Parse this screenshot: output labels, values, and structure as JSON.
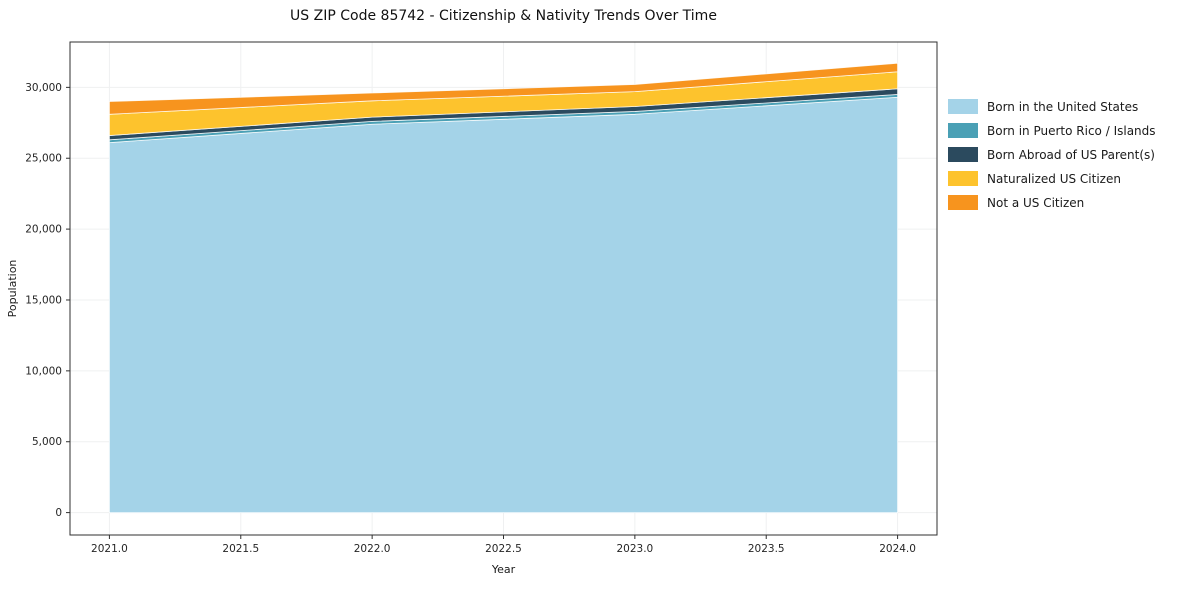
{
  "title": "US ZIP Code 85742 - Citizenship & Nativity Trends Over Time",
  "chart_data": {
    "type": "area",
    "stacked": true,
    "title": "US ZIP Code 85742 - Citizenship & Nativity Trends Over Time",
    "xlabel": "Year",
    "ylabel": "Population",
    "x": [
      2021,
      2022,
      2023,
      2024
    ],
    "series": [
      {
        "name": "Born in the United States",
        "color": "#a4d3e8",
        "values": [
          26100,
          27400,
          28100,
          29300
        ]
      },
      {
        "name": "Born in Puerto Rico / Islands",
        "color": "#4aa0b5",
        "values": [
          200,
          200,
          200,
          200
        ]
      },
      {
        "name": "Born Abroad of US Parent(s)",
        "color": "#2b4a5e",
        "values": [
          300,
          300,
          350,
          400
        ]
      },
      {
        "name": "Naturalized US Citizen",
        "color": "#fdc32d",
        "values": [
          1500,
          1150,
          1050,
          1200
        ]
      },
      {
        "name": "Not a US Citizen",
        "color": "#f7941e",
        "values": [
          900,
          550,
          500,
          600
        ]
      }
    ],
    "totals": [
      29000,
      29600,
      30200,
      31700
    ],
    "xticks": [
      "2021.0",
      "2021.5",
      "2022.0",
      "2022.5",
      "2023.0",
      "2023.5",
      "2024.0"
    ],
    "yticks": [
      "0",
      "5,000",
      "10,000",
      "15,000",
      "20,000",
      "25,000",
      "30,000"
    ],
    "xlim": [
      2020.85,
      2024.15
    ],
    "ylim": [
      -1580,
      33200
    ],
    "grid": true,
    "legend_position": "right",
    "colors": {
      "grid": "#eff0f1",
      "spine": "#2f2f2f",
      "tick_label": "#262626",
      "axis_label": "#1a1a1a",
      "background": "#ffffff"
    }
  }
}
